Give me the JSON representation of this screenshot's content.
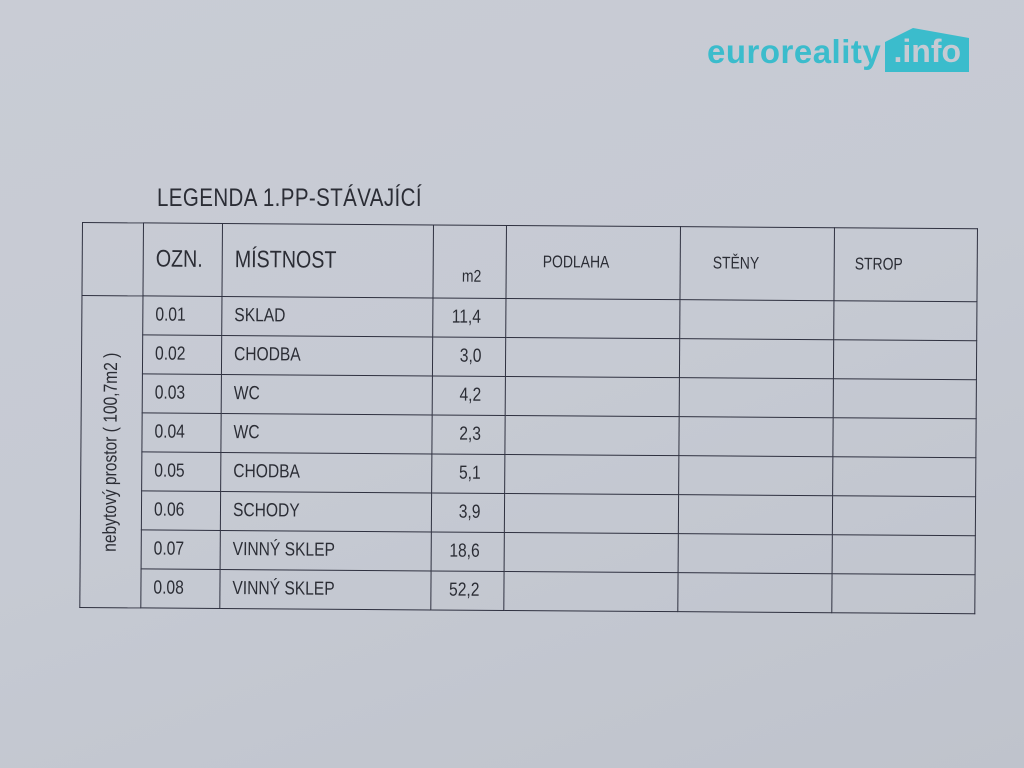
{
  "logo": {
    "text": "euroreality",
    "suffix": ".info",
    "color": "#3bbccc"
  },
  "title": "LEGENDA 1.PP-STÁVAJÍCÍ",
  "table": {
    "headers": {
      "ozn": "OZN.",
      "mistnost": "MÍSTNOST",
      "area": "m2",
      "podlaha": "PODLAHA",
      "steny": "STĚNY",
      "strop": "STROP"
    },
    "group_label": "nebytový prostor   ( 100,7m2 )",
    "rows": [
      {
        "ozn": "0.01",
        "mistnost": "SKLAD",
        "area": "11,4"
      },
      {
        "ozn": "0.02",
        "mistnost": "CHODBA",
        "area": "3,0"
      },
      {
        "ozn": "0.03",
        "mistnost": "WC",
        "area": "4,2"
      },
      {
        "ozn": "0.04",
        "mistnost": "WC",
        "area": "2,3"
      },
      {
        "ozn": "0.05",
        "mistnost": "CHODBA",
        "area": "5,1"
      },
      {
        "ozn": "0.06",
        "mistnost": "SCHODY",
        "area": "3,9"
      },
      {
        "ozn": "0.07",
        "mistnost": "VINNÝ SKLEP",
        "area": "18,6"
      },
      {
        "ozn": "0.08",
        "mistnost": "VINNÝ SKLEP",
        "area": "52,2"
      }
    ]
  }
}
